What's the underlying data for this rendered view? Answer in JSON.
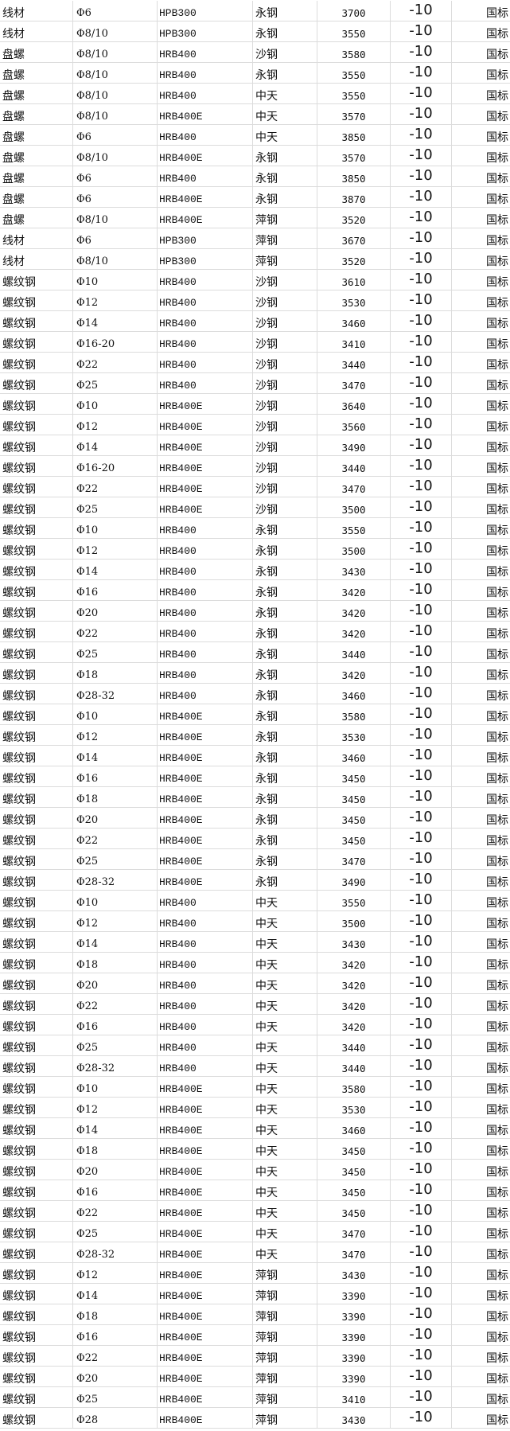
{
  "rows": [
    [
      "线材",
      "Φ6",
      "HPB300",
      "永钢",
      "3700",
      "-10",
      "国标"
    ],
    [
      "线材",
      "Φ8/10",
      "HPB300",
      "永钢",
      "3550",
      "-10",
      "国标"
    ],
    [
      "盘螺",
      "Φ8/10",
      "HRB400",
      "沙钢",
      "3580",
      "-10",
      "国标"
    ],
    [
      "盘螺",
      "Φ8/10",
      "HRB400",
      "永钢",
      "3550",
      "-10",
      "国标"
    ],
    [
      "盘螺",
      "Φ8/10",
      "HRB400",
      "中天",
      "3550",
      "-10",
      "国标"
    ],
    [
      "盘螺",
      "Φ8/10",
      "HRB400E",
      "中天",
      "3570",
      "-10",
      "国标"
    ],
    [
      "盘螺",
      "Φ6",
      "HRB400",
      "中天",
      "3850",
      "-10",
      "国标"
    ],
    [
      "盘螺",
      "Φ8/10",
      "HRB400E",
      "永钢",
      "3570",
      "-10",
      "国标"
    ],
    [
      "盘螺",
      "Φ6",
      "HRB400",
      "永钢",
      "3850",
      "-10",
      "国标"
    ],
    [
      "盘螺",
      "Φ6",
      "HRB400E",
      "永钢",
      "3870",
      "-10",
      "国标"
    ],
    [
      "盘螺",
      "Φ8/10",
      "HRB400E",
      "萍钢",
      "3520",
      "-10",
      "国标"
    ],
    [
      "线材",
      "Φ6",
      "HPB300",
      "萍钢",
      "3670",
      "-10",
      "国标"
    ],
    [
      "线材",
      "Φ8/10",
      "HPB300",
      "萍钢",
      "3520",
      "-10",
      "国标"
    ],
    [
      "螺纹钢",
      "Φ10",
      "HRB400",
      "沙钢",
      "3610",
      "-10",
      "国标"
    ],
    [
      "螺纹钢",
      "Φ12",
      "HRB400",
      "沙钢",
      "3530",
      "-10",
      "国标"
    ],
    [
      "螺纹钢",
      "Φ14",
      "HRB400",
      "沙钢",
      "3460",
      "-10",
      "国标"
    ],
    [
      "螺纹钢",
      "Φ16-20",
      "HRB400",
      "沙钢",
      "3410",
      "-10",
      "国标"
    ],
    [
      "螺纹钢",
      "Φ22",
      "HRB400",
      "沙钢",
      "3440",
      "-10",
      "国标"
    ],
    [
      "螺纹钢",
      "Φ25",
      "HRB400",
      "沙钢",
      "3470",
      "-10",
      "国标"
    ],
    [
      "螺纹钢",
      "Φ10",
      "HRB400E",
      "沙钢",
      "3640",
      "-10",
      "国标"
    ],
    [
      "螺纹钢",
      "Φ12",
      "HRB400E",
      "沙钢",
      "3560",
      "-10",
      "国标"
    ],
    [
      "螺纹钢",
      "Φ14",
      "HRB400E",
      "沙钢",
      "3490",
      "-10",
      "国标"
    ],
    [
      "螺纹钢",
      "Φ16-20",
      "HRB400E",
      "沙钢",
      "3440",
      "-10",
      "国标"
    ],
    [
      "螺纹钢",
      "Φ22",
      "HRB400E",
      "沙钢",
      "3470",
      "-10",
      "国标"
    ],
    [
      "螺纹钢",
      "Φ25",
      "HRB400E",
      "沙钢",
      "3500",
      "-10",
      "国标"
    ],
    [
      "螺纹钢",
      "Φ10",
      "HRB400",
      "永钢",
      "3550",
      "-10",
      "国标"
    ],
    [
      "螺纹钢",
      "Φ12",
      "HRB400",
      "永钢",
      "3500",
      "-10",
      "国标"
    ],
    [
      "螺纹钢",
      "Φ14",
      "HRB400",
      "永钢",
      "3430",
      "-10",
      "国标"
    ],
    [
      "螺纹钢",
      "Φ16",
      "HRB400",
      "永钢",
      "3420",
      "-10",
      "国标"
    ],
    [
      "螺纹钢",
      "Φ20",
      "HRB400",
      "永钢",
      "3420",
      "-10",
      "国标"
    ],
    [
      "螺纹钢",
      "Φ22",
      "HRB400",
      "永钢",
      "3420",
      "-10",
      "国标"
    ],
    [
      "螺纹钢",
      "Φ25",
      "HRB400",
      "永钢",
      "3440",
      "-10",
      "国标"
    ],
    [
      "螺纹钢",
      "Φ18",
      "HRB400",
      "永钢",
      "3420",
      "-10",
      "国标"
    ],
    [
      "螺纹钢",
      "Φ28-32",
      "HRB400",
      "永钢",
      "3460",
      "-10",
      "国标"
    ],
    [
      "螺纹钢",
      "Φ10",
      "HRB400E",
      "永钢",
      "3580",
      "-10",
      "国标"
    ],
    [
      "螺纹钢",
      "Φ12",
      "HRB400E",
      "永钢",
      "3530",
      "-10",
      "国标"
    ],
    [
      "螺纹钢",
      "Φ14",
      "HRB400E",
      "永钢",
      "3460",
      "-10",
      "国标"
    ],
    [
      "螺纹钢",
      "Φ16",
      "HRB400E",
      "永钢",
      "3450",
      "-10",
      "国标"
    ],
    [
      "螺纹钢",
      "Φ18",
      "HRB400E",
      "永钢",
      "3450",
      "-10",
      "国标"
    ],
    [
      "螺纹钢",
      "Φ20",
      "HRB400E",
      "永钢",
      "3450",
      "-10",
      "国标"
    ],
    [
      "螺纹钢",
      "Φ22",
      "HRB400E",
      "永钢",
      "3450",
      "-10",
      "国标"
    ],
    [
      "螺纹钢",
      "Φ25",
      "HRB400E",
      "永钢",
      "3470",
      "-10",
      "国标"
    ],
    [
      "螺纹钢",
      "Φ28-32",
      "HRB400E",
      "永钢",
      "3490",
      "-10",
      "国标"
    ],
    [
      "螺纹钢",
      "Φ10",
      "HRB400",
      "中天",
      "3550",
      "-10",
      "国标"
    ],
    [
      "螺纹钢",
      "Φ12",
      "HRB400",
      "中天",
      "3500",
      "-10",
      "国标"
    ],
    [
      "螺纹钢",
      "Φ14",
      "HRB400",
      "中天",
      "3430",
      "-10",
      "国标"
    ],
    [
      "螺纹钢",
      "Φ18",
      "HRB400",
      "中天",
      "3420",
      "-10",
      "国标"
    ],
    [
      "螺纹钢",
      "Φ20",
      "HRB400",
      "中天",
      "3420",
      "-10",
      "国标"
    ],
    [
      "螺纹钢",
      "Φ22",
      "HRB400",
      "中天",
      "3420",
      "-10",
      "国标"
    ],
    [
      "螺纹钢",
      "Φ16",
      "HRB400",
      "中天",
      "3420",
      "-10",
      "国标"
    ],
    [
      "螺纹钢",
      "Φ25",
      "HRB400",
      "中天",
      "3440",
      "-10",
      "国标"
    ],
    [
      "螺纹钢",
      "Φ28-32",
      "HRB400",
      "中天",
      "3440",
      "-10",
      "国标"
    ],
    [
      "螺纹钢",
      "Φ10",
      "HRB400E",
      "中天",
      "3580",
      "-10",
      "国标"
    ],
    [
      "螺纹钢",
      "Φ12",
      "HRB400E",
      "中天",
      "3530",
      "-10",
      "国标"
    ],
    [
      "螺纹钢",
      "Φ14",
      "HRB400E",
      "中天",
      "3460",
      "-10",
      "国标"
    ],
    [
      "螺纹钢",
      "Φ18",
      "HRB400E",
      "中天",
      "3450",
      "-10",
      "国标"
    ],
    [
      "螺纹钢",
      "Φ20",
      "HRB400E",
      "中天",
      "3450",
      "-10",
      "国标"
    ],
    [
      "螺纹钢",
      "Φ16",
      "HRB400E",
      "中天",
      "3450",
      "-10",
      "国标"
    ],
    [
      "螺纹钢",
      "Φ22",
      "HRB400E",
      "中天",
      "3450",
      "-10",
      "国标"
    ],
    [
      "螺纹钢",
      "Φ25",
      "HRB400E",
      "中天",
      "3470",
      "-10",
      "国标"
    ],
    [
      "螺纹钢",
      "Φ28-32",
      "HRB400E",
      "中天",
      "3470",
      "-10",
      "国标"
    ],
    [
      "螺纹钢",
      "Φ12",
      "HRB400E",
      "萍钢",
      "3430",
      "-10",
      "国标"
    ],
    [
      "螺纹钢",
      "Φ14",
      "HRB400E",
      "萍钢",
      "3390",
      "-10",
      "国标"
    ],
    [
      "螺纹钢",
      "Φ18",
      "HRB400E",
      "萍钢",
      "3390",
      "-10",
      "国标"
    ],
    [
      "螺纹钢",
      "Φ16",
      "HRB400E",
      "萍钢",
      "3390",
      "-10",
      "国标"
    ],
    [
      "螺纹钢",
      "Φ22",
      "HRB400E",
      "萍钢",
      "3390",
      "-10",
      "国标"
    ],
    [
      "螺纹钢",
      "Φ20",
      "HRB400E",
      "萍钢",
      "3390",
      "-10",
      "国标"
    ],
    [
      "螺纹钢",
      "Φ25",
      "HRB400E",
      "萍钢",
      "3410",
      "-10",
      "国标"
    ],
    [
      "螺纹钢",
      "Φ28",
      "HRB400E",
      "萍钢",
      "3430",
      "-10",
      "国标"
    ]
  ]
}
